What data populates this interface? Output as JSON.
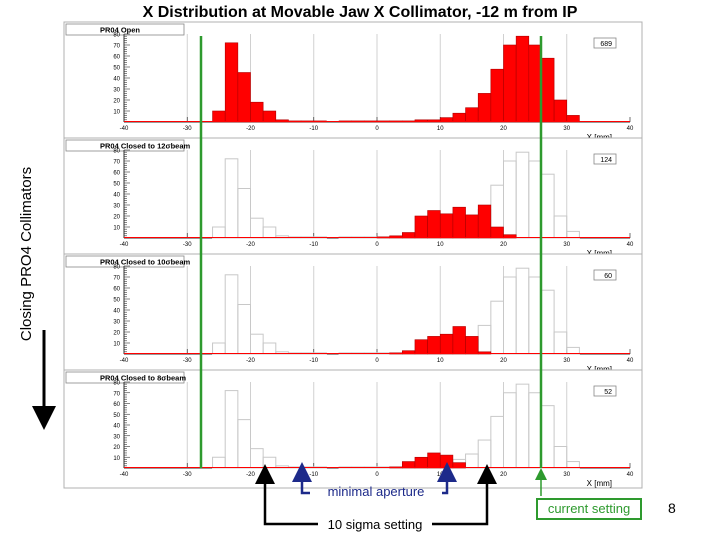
{
  "title": "X Distribution at Movable Jaw X Collimator, -12 m from IP",
  "side_label": "Closing PRO4 Collimators",
  "slide_number": "8",
  "colors": {
    "fill": "#ff0000",
    "outline": "#c8c8c8",
    "green": "#2e9a2e",
    "blue": "#1d2a8a"
  },
  "annotations": {
    "current_setting": "current setting",
    "minimal_aperture": "minimal aperture",
    "ten_sigma": "10 sigma setting"
  },
  "chart_data": [
    {
      "type": "bar",
      "title": "PR04 Open",
      "stat": "689",
      "xlabel": "X [mm]",
      "xlim": [
        -40,
        40
      ],
      "ylim": [
        0,
        80
      ],
      "xticks": [
        -40,
        -30,
        -20,
        -10,
        0,
        10,
        20,
        30,
        40
      ],
      "yticks": [
        10,
        20,
        30,
        40,
        50,
        60,
        70,
        80
      ],
      "bin_width": 2,
      "bins": [
        [
          -26,
          10
        ],
        [
          -24,
          72
        ],
        [
          -22,
          45
        ],
        [
          -20,
          18
        ],
        [
          -18,
          10
        ],
        [
          -16,
          2
        ],
        [
          -14,
          1
        ],
        [
          -12,
          1
        ],
        [
          -10,
          1
        ],
        [
          -6,
          1
        ],
        [
          -4,
          1
        ],
        [
          -2,
          1
        ],
        [
          0,
          1
        ],
        [
          2,
          1
        ],
        [
          4,
          1
        ],
        [
          6,
          2
        ],
        [
          8,
          2
        ],
        [
          10,
          4
        ],
        [
          12,
          8
        ],
        [
          14,
          13
        ],
        [
          16,
          26
        ],
        [
          18,
          48
        ],
        [
          20,
          70
        ],
        [
          22,
          78
        ],
        [
          24,
          70
        ],
        [
          26,
          58
        ],
        [
          28,
          20
        ],
        [
          30,
          6
        ]
      ],
      "outline": []
    },
    {
      "type": "bar",
      "title": "PR04 Closed to 12σbeam",
      "stat": "124",
      "xlabel": "X [mm]",
      "xlim": [
        -40,
        40
      ],
      "ylim": [
        0,
        80
      ],
      "xticks": [
        -40,
        -30,
        -20,
        -10,
        0,
        10,
        20,
        30,
        40
      ],
      "yticks": [
        10,
        20,
        30,
        40,
        50,
        60,
        70,
        80
      ],
      "bin_width": 2,
      "bins": [
        [
          0,
          1
        ],
        [
          2,
          2
        ],
        [
          4,
          5
        ],
        [
          6,
          20
        ],
        [
          8,
          25
        ],
        [
          10,
          22
        ],
        [
          12,
          28
        ],
        [
          14,
          21
        ],
        [
          16,
          30
        ],
        [
          18,
          10
        ],
        [
          20,
          3
        ]
      ],
      "outline": [
        [
          -26,
          10
        ],
        [
          -24,
          72
        ],
        [
          -22,
          45
        ],
        [
          -20,
          18
        ],
        [
          -18,
          10
        ],
        [
          -16,
          2
        ],
        [
          -14,
          1
        ],
        [
          -12,
          1
        ],
        [
          -10,
          1
        ],
        [
          -6,
          1
        ],
        [
          -4,
          1
        ],
        [
          -2,
          1
        ],
        [
          0,
          1
        ],
        [
          2,
          1
        ],
        [
          4,
          1
        ],
        [
          6,
          2
        ],
        [
          8,
          2
        ],
        [
          10,
          4
        ],
        [
          12,
          8
        ],
        [
          14,
          13
        ],
        [
          16,
          26
        ],
        [
          18,
          48
        ],
        [
          20,
          70
        ],
        [
          22,
          78
        ],
        [
          24,
          70
        ],
        [
          26,
          58
        ],
        [
          28,
          20
        ],
        [
          30,
          6
        ]
      ]
    },
    {
      "type": "bar",
      "title": "PR04 Closed to 10σbeam",
      "stat": "60",
      "xlabel": "X [mm]",
      "xlim": [
        -40,
        40
      ],
      "ylim": [
        0,
        80
      ],
      "xticks": [
        -40,
        -30,
        -20,
        -10,
        0,
        10,
        20,
        30,
        40
      ],
      "yticks": [
        10,
        20,
        30,
        40,
        50,
        60,
        70,
        80
      ],
      "bin_width": 2,
      "bins": [
        [
          2,
          1
        ],
        [
          4,
          3
        ],
        [
          6,
          13
        ],
        [
          8,
          16
        ],
        [
          10,
          18
        ],
        [
          12,
          25
        ],
        [
          14,
          16
        ],
        [
          16,
          2
        ]
      ],
      "outline": [
        [
          -26,
          10
        ],
        [
          -24,
          72
        ],
        [
          -22,
          45
        ],
        [
          -20,
          18
        ],
        [
          -18,
          10
        ],
        [
          -16,
          2
        ],
        [
          -14,
          1
        ],
        [
          -12,
          1
        ],
        [
          -10,
          1
        ],
        [
          -6,
          1
        ],
        [
          -4,
          1
        ],
        [
          -2,
          1
        ],
        [
          0,
          1
        ],
        [
          2,
          1
        ],
        [
          4,
          1
        ],
        [
          6,
          2
        ],
        [
          8,
          2
        ],
        [
          10,
          4
        ],
        [
          12,
          8
        ],
        [
          14,
          13
        ],
        [
          16,
          26
        ],
        [
          18,
          48
        ],
        [
          20,
          70
        ],
        [
          22,
          78
        ],
        [
          24,
          70
        ],
        [
          26,
          58
        ],
        [
          28,
          20
        ],
        [
          30,
          6
        ]
      ]
    },
    {
      "type": "bar",
      "title": "PR04 Closed to 8σbeam",
      "stat": "52",
      "xlabel": "X [mm]",
      "xlim": [
        -40,
        40
      ],
      "ylim": [
        0,
        80
      ],
      "xticks": [
        -40,
        -30,
        -20,
        -10,
        0,
        10,
        20,
        30,
        40
      ],
      "yticks": [
        10,
        20,
        30,
        40,
        50,
        60,
        70,
        80
      ],
      "bin_width": 2,
      "bins": [
        [
          2,
          1
        ],
        [
          4,
          6
        ],
        [
          6,
          10
        ],
        [
          8,
          14
        ],
        [
          10,
          12
        ],
        [
          12,
          5
        ]
      ],
      "outline": [
        [
          -26,
          10
        ],
        [
          -24,
          72
        ],
        [
          -22,
          45
        ],
        [
          -20,
          18
        ],
        [
          -18,
          10
        ],
        [
          -16,
          2
        ],
        [
          -14,
          1
        ],
        [
          -12,
          1
        ],
        [
          -10,
          1
        ],
        [
          -6,
          1
        ],
        [
          -4,
          1
        ],
        [
          -2,
          1
        ],
        [
          0,
          1
        ],
        [
          2,
          1
        ],
        [
          4,
          1
        ],
        [
          6,
          2
        ],
        [
          8,
          2
        ],
        [
          10,
          4
        ],
        [
          12,
          8
        ],
        [
          14,
          13
        ],
        [
          16,
          26
        ],
        [
          18,
          48
        ],
        [
          20,
          70
        ],
        [
          22,
          78
        ],
        [
          24,
          70
        ],
        [
          26,
          58
        ],
        [
          28,
          20
        ],
        [
          30,
          6
        ]
      ]
    }
  ]
}
